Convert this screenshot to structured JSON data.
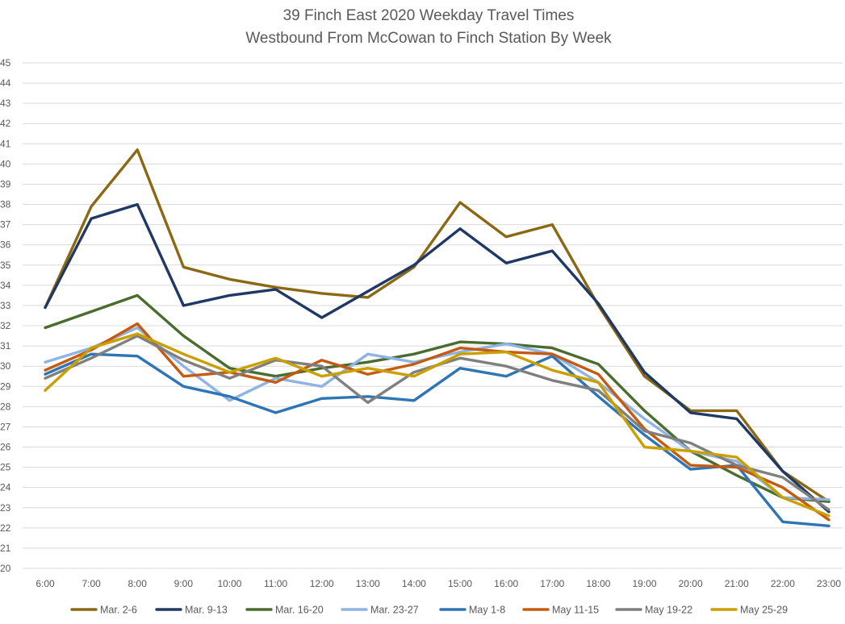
{
  "chart_data": {
    "type": "line",
    "title": "39 Finch East 2020 Weekday Travel Times",
    "subtitle": "Westbound From McCowan to Finch Station By Week",
    "xlabel": "",
    "ylabel": "",
    "ylim": [
      20,
      45
    ],
    "yticks": [
      20,
      21,
      22,
      23,
      24,
      25,
      26,
      27,
      28,
      29,
      30,
      31,
      32,
      33,
      34,
      35,
      36,
      37,
      38,
      39,
      40,
      41,
      42,
      43,
      44,
      45
    ],
    "categories": [
      "6:00",
      "7:00",
      "8:00",
      "9:00",
      "10:00",
      "11:00",
      "12:00",
      "13:00",
      "14:00",
      "15:00",
      "16:00",
      "17:00",
      "18:00",
      "19:00",
      "20:00",
      "21:00",
      "22:00",
      "23:00"
    ],
    "grid": true,
    "legend_position": "bottom",
    "series": [
      {
        "name": "Mar. 2-6",
        "color": "#8b6914",
        "values": [
          32.9,
          37.9,
          40.7,
          34.9,
          34.3,
          33.9,
          33.6,
          33.4,
          34.9,
          38.1,
          36.4,
          37.0,
          33.0,
          29.5,
          27.8,
          27.8,
          24.8,
          23.3
        ]
      },
      {
        "name": "Mar. 9-13",
        "color": "#203864",
        "values": [
          32.9,
          37.3,
          38.0,
          33.0,
          33.5,
          33.8,
          32.4,
          33.7,
          35.0,
          36.8,
          35.1,
          35.7,
          33.1,
          29.7,
          27.7,
          27.4,
          24.8,
          22.8
        ]
      },
      {
        "name": "Mar. 16-20",
        "color": "#4a6c2f",
        "values": [
          31.9,
          32.7,
          33.5,
          31.5,
          29.9,
          29.5,
          29.9,
          30.2,
          30.6,
          31.2,
          31.1,
          30.9,
          30.1,
          27.8,
          25.8,
          24.6,
          23.5,
          23.3
        ]
      },
      {
        "name": "Mar. 23-27",
        "color": "#8fb4e3",
        "values": [
          30.2,
          30.9,
          31.9,
          30.0,
          28.3,
          29.4,
          29.0,
          30.6,
          30.2,
          30.7,
          31.1,
          30.6,
          29.2,
          27.4,
          25.8,
          25.3,
          23.5,
          23.4
        ]
      },
      {
        "name": "May 1-8",
        "color": "#2e75b6",
        "values": [
          29.6,
          30.6,
          30.5,
          29.0,
          28.5,
          27.7,
          28.4,
          28.5,
          28.3,
          29.9,
          29.5,
          30.5,
          28.5,
          26.6,
          24.9,
          25.1,
          22.3,
          22.1
        ]
      },
      {
        "name": "May 11-15",
        "color": "#c55a11",
        "values": [
          29.8,
          30.8,
          32.1,
          29.5,
          29.7,
          29.2,
          30.3,
          29.6,
          30.1,
          30.9,
          30.7,
          30.6,
          29.6,
          26.9,
          25.1,
          25.0,
          24.0,
          22.4
        ]
      },
      {
        "name": "May 19-22",
        "color": "#7f7f7f",
        "values": [
          29.4,
          30.4,
          31.5,
          30.3,
          29.4,
          30.3,
          30.0,
          28.2,
          29.7,
          30.4,
          30.0,
          29.3,
          28.8,
          26.8,
          26.2,
          25.1,
          24.5,
          22.9
        ]
      },
      {
        "name": "May 25-29",
        "color": "#c9a000",
        "values": [
          28.8,
          30.9,
          31.6,
          30.6,
          29.7,
          30.4,
          29.5,
          29.9,
          29.5,
          30.6,
          30.7,
          29.8,
          29.2,
          26.0,
          25.8,
          25.5,
          23.5,
          22.6
        ]
      }
    ]
  }
}
